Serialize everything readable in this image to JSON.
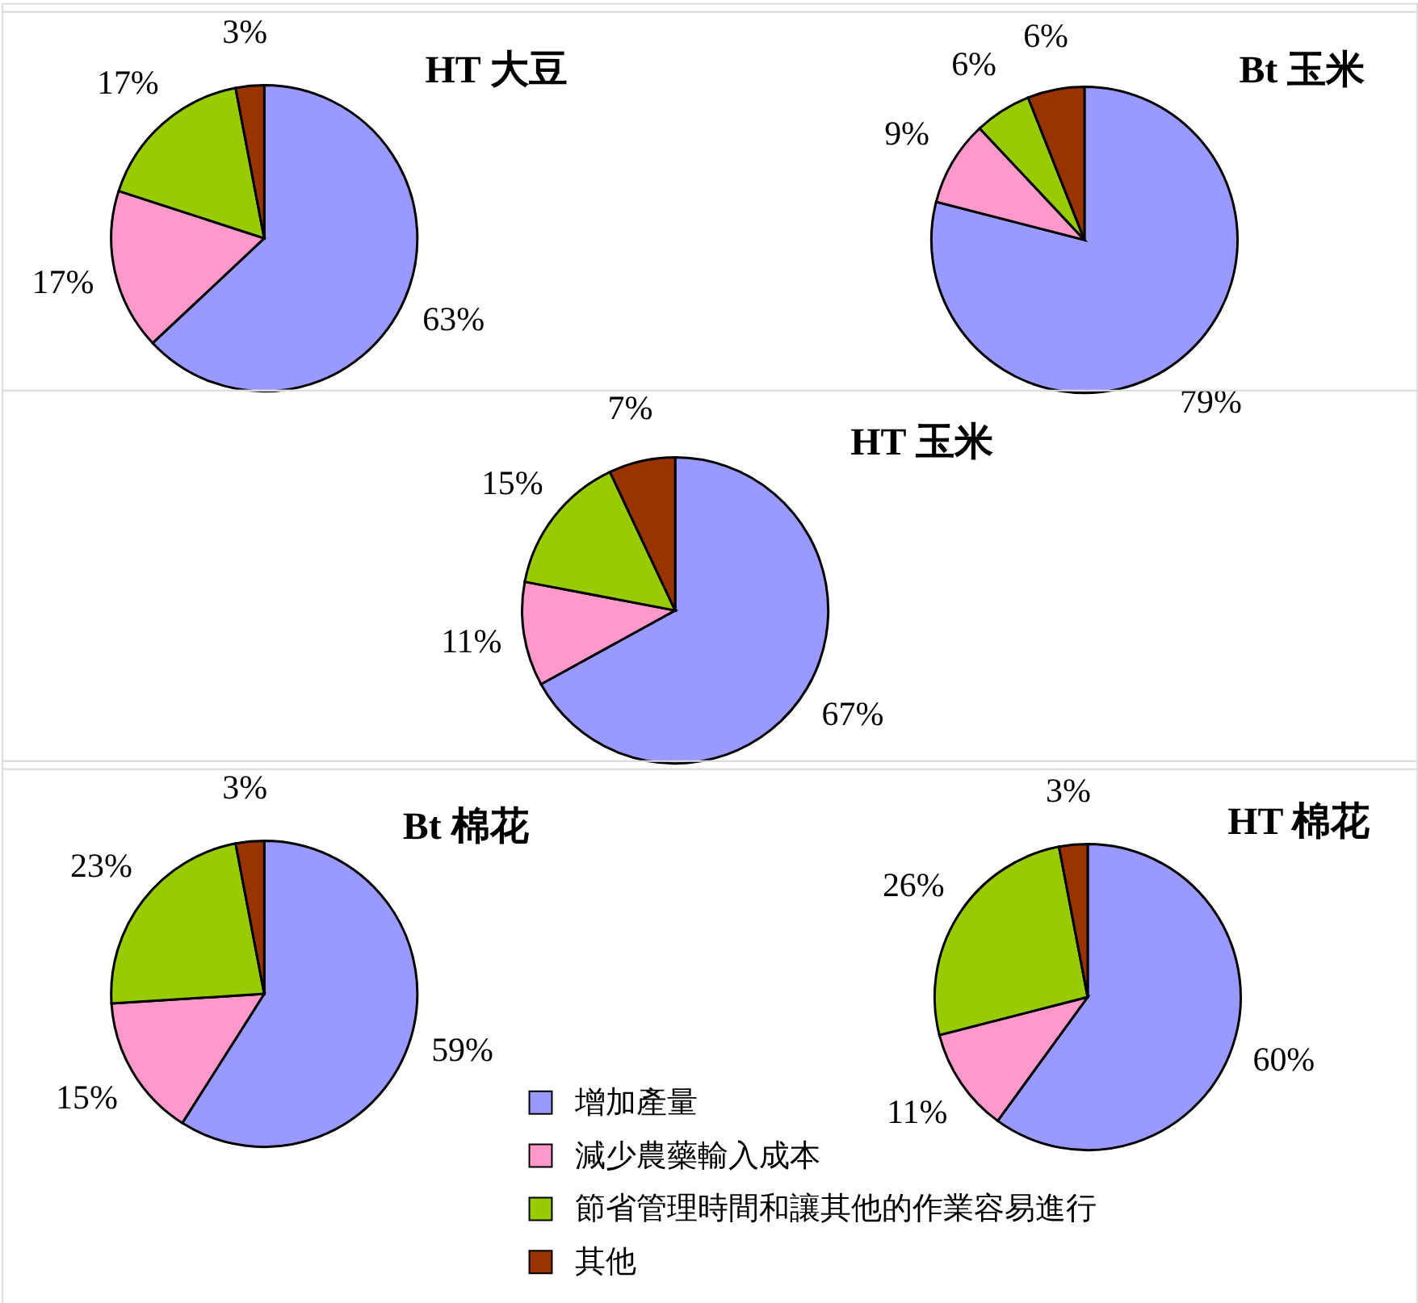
{
  "chart_data": [
    {
      "type": "pie",
      "title": "HT 大豆",
      "categories": [
        null,
        null,
        null,
        null
      ],
      "values": [
        63,
        17,
        17,
        3
      ],
      "colors": [
        "#9999ff",
        "#ff99cc",
        "#99cc00",
        "#993300"
      ],
      "value_labels": [
        "63%",
        "17%",
        "17%",
        "3%"
      ]
    },
    {
      "type": "pie",
      "title": "Bt 玉米",
      "categories": [
        null,
        null,
        null,
        null
      ],
      "values": [
        79,
        9,
        6,
        6
      ],
      "colors": [
        "#9999ff",
        "#ff99cc",
        "#99cc00",
        "#993300"
      ],
      "value_labels": [
        "79%",
        "9%",
        "6%",
        "6%"
      ]
    },
    {
      "type": "pie",
      "title": "HT 玉米",
      "categories": [
        null,
        null,
        null,
        null
      ],
      "values": [
        67,
        11,
        15,
        7
      ],
      "colors": [
        "#9999ff",
        "#ff99cc",
        "#99cc00",
        "#993300"
      ],
      "value_labels": [
        "67%",
        "11%",
        "15%",
        "7%"
      ]
    },
    {
      "type": "pie",
      "title": "Bt 棉花",
      "categories": [
        null,
        null,
        null,
        null
      ],
      "values": [
        59,
        15,
        23,
        3
      ],
      "colors": [
        "#9999ff",
        "#ff99cc",
        "#99cc00",
        "#993300"
      ],
      "value_labels": [
        "59%",
        "15%",
        "23%",
        "3%"
      ]
    },
    {
      "type": "pie",
      "title": "HT 棉花",
      "categories": [
        "增加產量",
        "減少農藥輸入成本",
        "節省管理時間和讓其他的作業容易進行",
        "其他"
      ],
      "values": [
        60,
        11,
        26,
        3
      ],
      "colors": [
        "#9999ff",
        "#ff99cc",
        "#99cc00",
        "#993300"
      ],
      "value_labels": [
        "60%",
        "11%",
        "26%",
        "3%"
      ],
      "legend": "bottom"
    }
  ]
}
